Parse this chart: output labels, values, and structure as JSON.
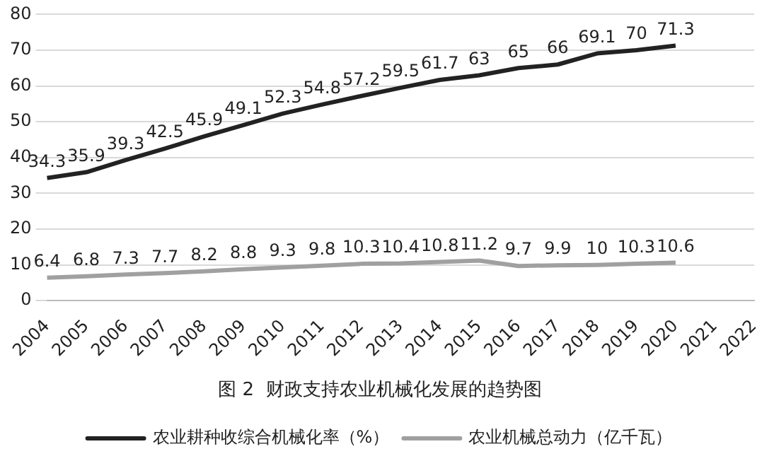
{
  "chart_data": {
    "type": "line",
    "title": "图 2  财政支持农业机械化发展的趋势图",
    "categories": [
      "2004",
      "2005",
      "2006",
      "2007",
      "2008",
      "2009",
      "2010",
      "2011",
      "2012",
      "2013",
      "2014",
      "2015",
      "2016",
      "2017",
      "2018",
      "2019",
      "2020",
      "2021",
      "2022"
    ],
    "series": [
      {
        "name": "农业耕种收综合机械化率（%）",
        "color": "#222222",
        "values": [
          34.3,
          35.9,
          39.3,
          42.5,
          45.9,
          49.1,
          52.3,
          54.8,
          57.2,
          59.5,
          61.7,
          63,
          65,
          66,
          69.1,
          70,
          71.3,
          null,
          null
        ]
      },
      {
        "name": "农业机械总动力（亿千瓦）",
        "color": "#a0a0a0",
        "values": [
          6.4,
          6.8,
          7.3,
          7.7,
          8.2,
          8.8,
          9.3,
          9.8,
          10.3,
          10.4,
          10.8,
          11.2,
          9.7,
          9.9,
          10,
          10.3,
          10.6,
          null,
          null
        ]
      }
    ],
    "ylim": [
      0,
      80
    ],
    "yticks": [
      0,
      10,
      20,
      30,
      40,
      50,
      60,
      70,
      80
    ],
    "grid": "y",
    "legend": "bottom",
    "data_labels": true,
    "marker": "none",
    "line_style": "solid"
  }
}
